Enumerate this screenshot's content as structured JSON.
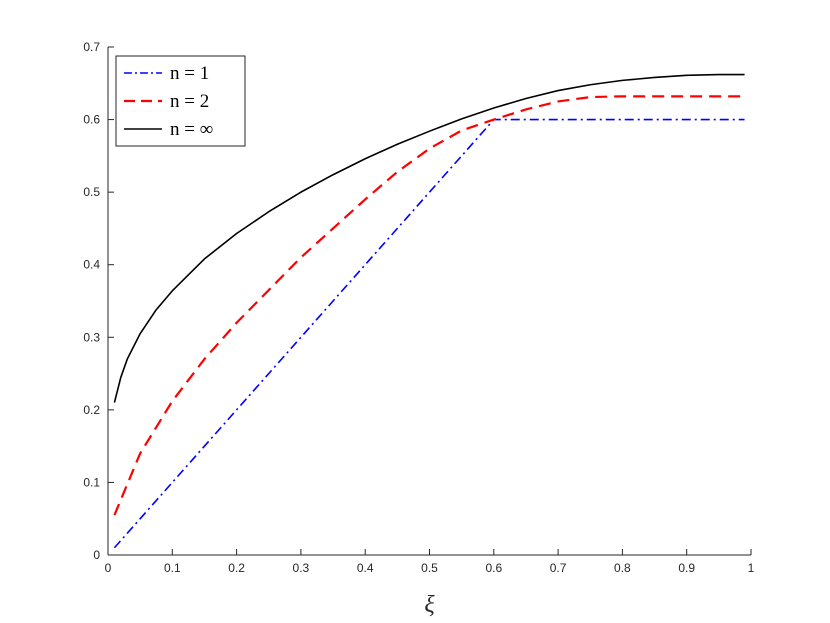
{
  "chart_data": {
    "type": "line",
    "title": "",
    "xlabel": "ξ",
    "ylabel": "",
    "xlim": [
      0,
      1
    ],
    "ylim": [
      0,
      0.7
    ],
    "xticks": [
      "0",
      "0.1",
      "0.2",
      "0.3",
      "0.4",
      "0.5",
      "0.6",
      "0.7",
      "0.8",
      "0.9",
      "1"
    ],
    "yticks": [
      "0",
      "0.1",
      "0.2",
      "0.3",
      "0.4",
      "0.5",
      "0.6",
      "0.7"
    ],
    "grid": false,
    "legend": {
      "position": "top-left",
      "box": true
    },
    "series": [
      {
        "name": "n = 1",
        "color": "#0000ff",
        "style": "dash-dot",
        "x": [
          0.01,
          0.6,
          0.99
        ],
        "y": [
          0.01,
          0.6,
          0.6
        ]
      },
      {
        "name": "n = 2",
        "color": "#ff0000",
        "style": "dashed",
        "x": [
          0.01,
          0.05,
          0.1,
          0.15,
          0.2,
          0.25,
          0.3,
          0.35,
          0.4,
          0.45,
          0.5,
          0.55,
          0.6,
          0.65,
          0.7,
          0.75,
          0.8,
          0.9,
          0.99
        ],
        "y": [
          0.055,
          0.14,
          0.212,
          0.27,
          0.32,
          0.365,
          0.41,
          0.45,
          0.49,
          0.528,
          0.56,
          0.585,
          0.6,
          0.614,
          0.625,
          0.631,
          0.632,
          0.632,
          0.632
        ]
      },
      {
        "name": "n = ∞",
        "color": "#000000",
        "style": "solid",
        "x": [
          0.01,
          0.02,
          0.03,
          0.05,
          0.075,
          0.1,
          0.15,
          0.2,
          0.25,
          0.3,
          0.35,
          0.4,
          0.45,
          0.5,
          0.55,
          0.6,
          0.65,
          0.7,
          0.75,
          0.8,
          0.85,
          0.9,
          0.95,
          0.99
        ],
        "y": [
          0.21,
          0.245,
          0.27,
          0.305,
          0.338,
          0.364,
          0.408,
          0.443,
          0.473,
          0.5,
          0.524,
          0.546,
          0.566,
          0.584,
          0.601,
          0.616,
          0.629,
          0.64,
          0.648,
          0.654,
          0.658,
          0.661,
          0.662,
          0.662
        ]
      }
    ]
  }
}
